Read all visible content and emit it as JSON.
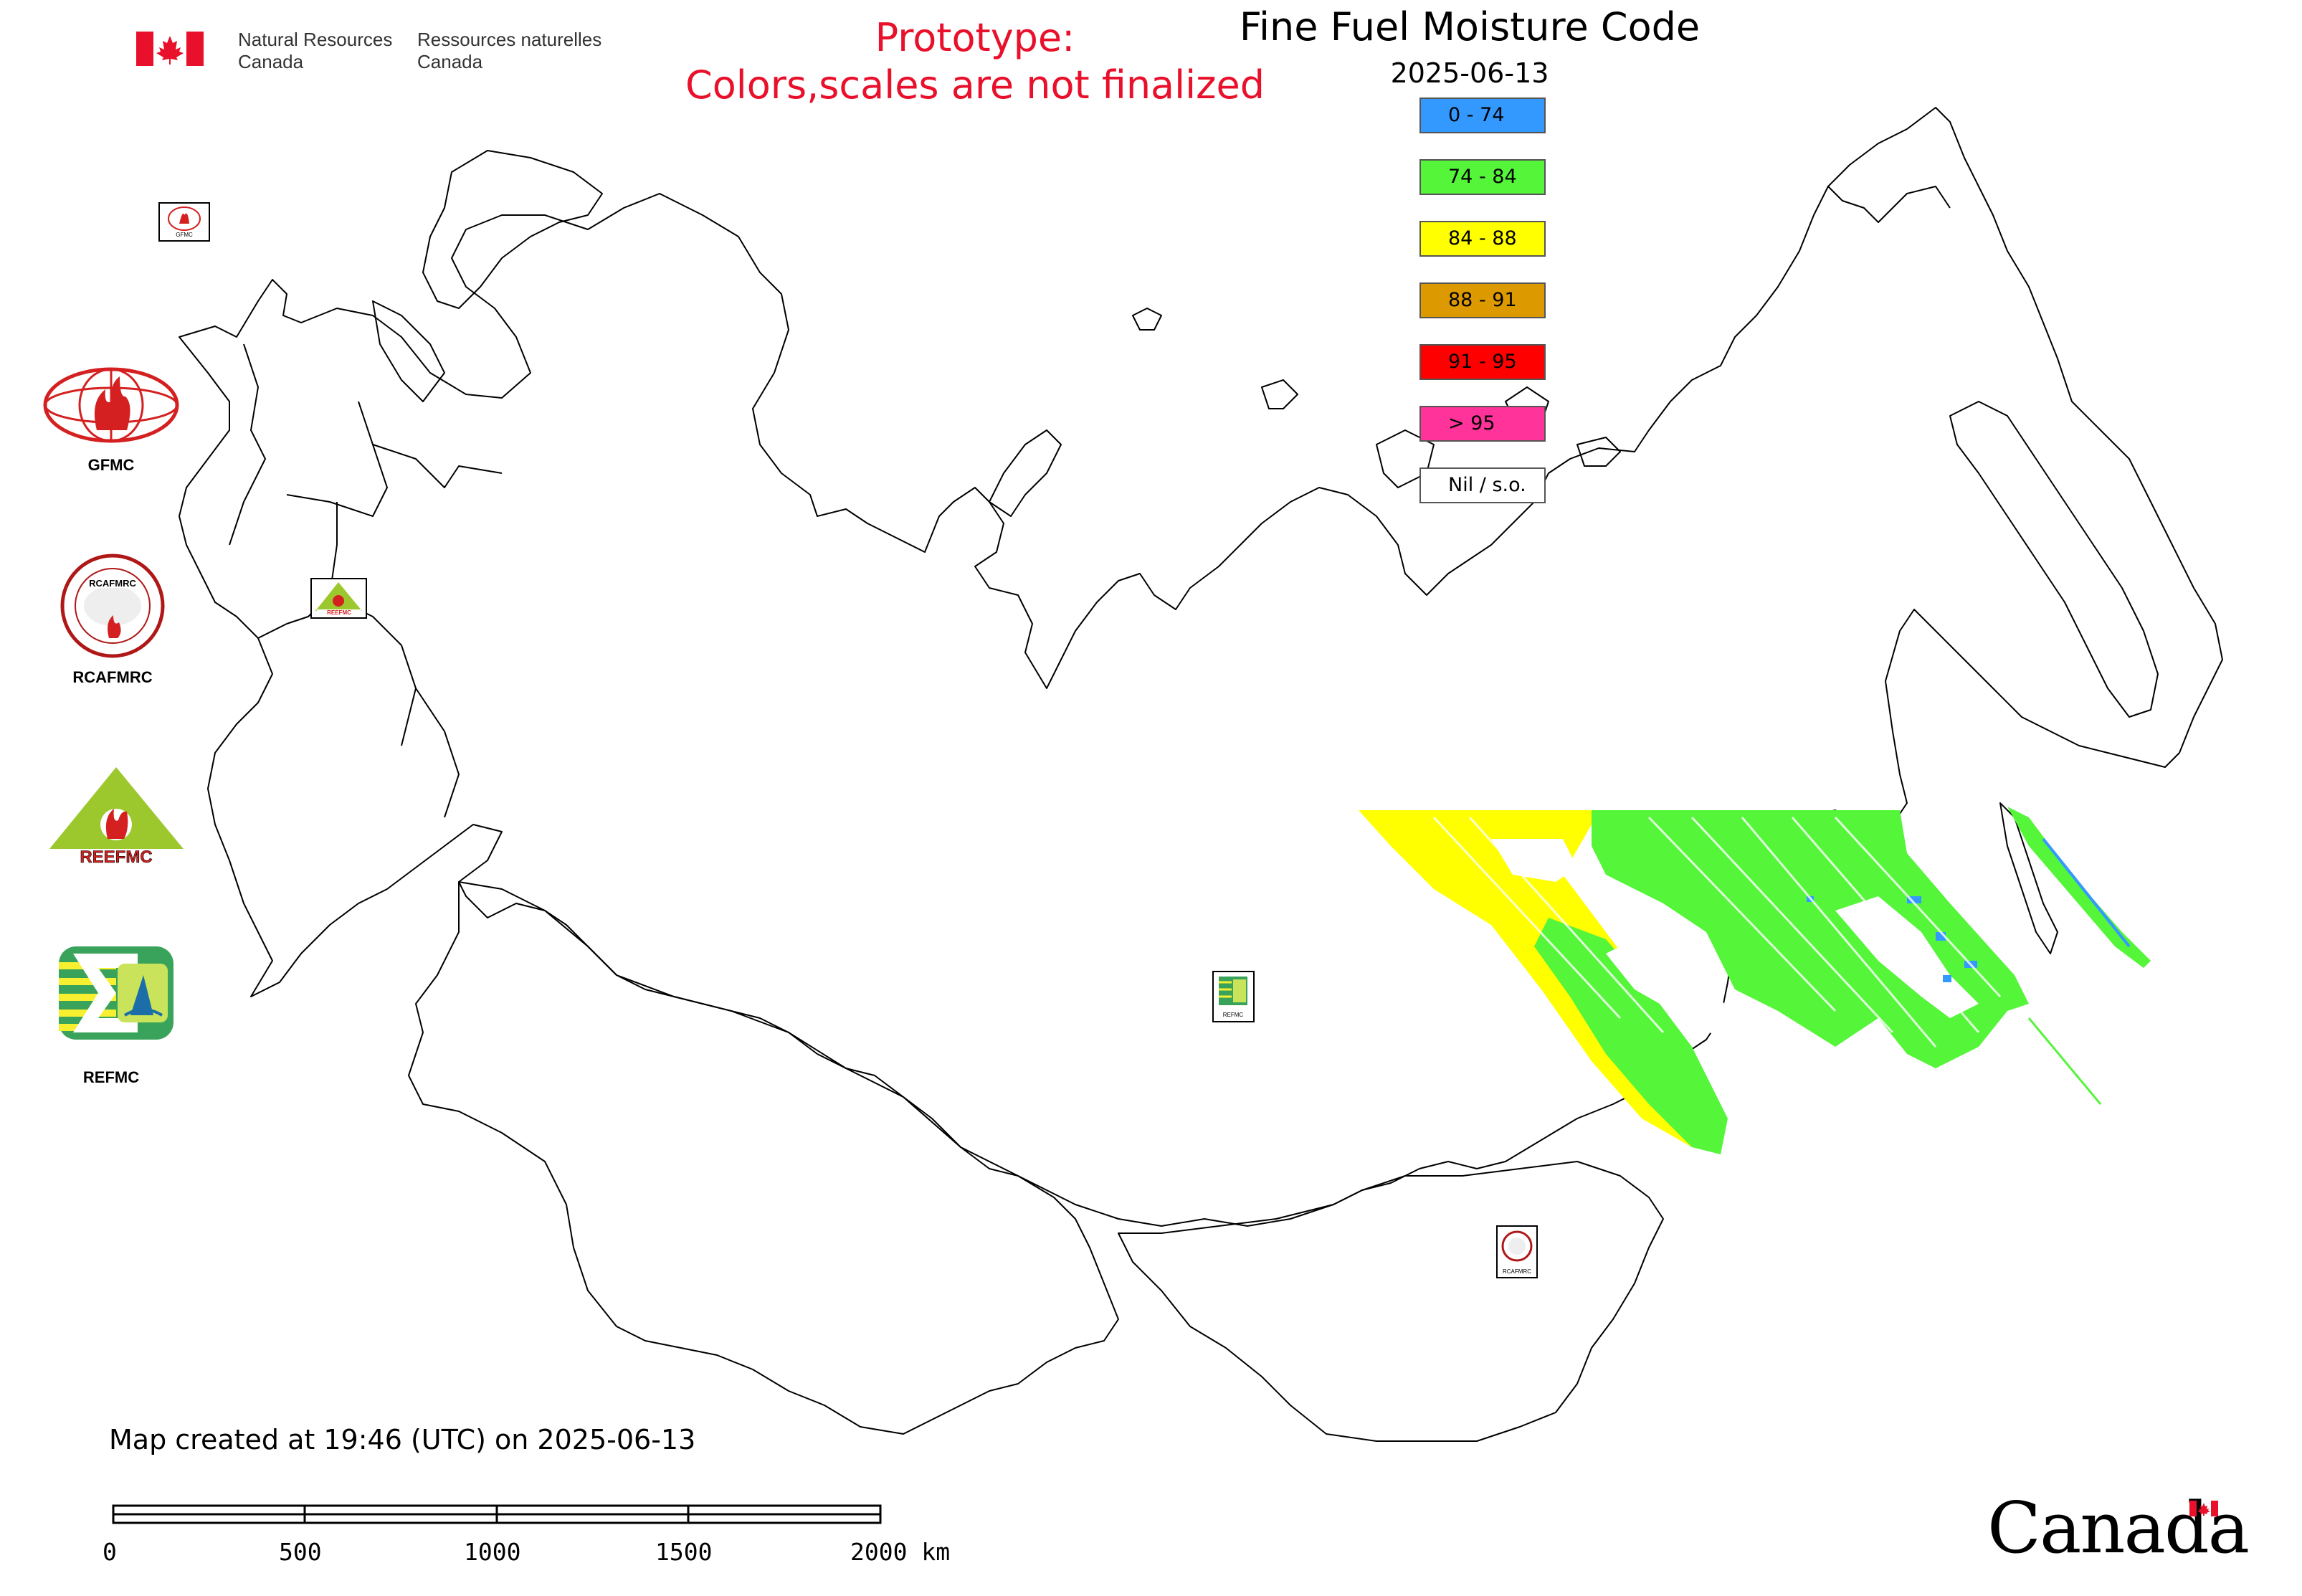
{
  "header": {
    "agency_en_1": "Natural Resources",
    "agency_en_2": "Canada",
    "agency_fr_1": "Ressources naturelles",
    "agency_fr_2": "Canada",
    "prototype_line1": "Prototype:",
    "prototype_line2": "Colors,scales are not finalized"
  },
  "map": {
    "title": "Fine Fuel Moisture Code",
    "date": "2025-06-13"
  },
  "legend": [
    {
      "label": "0 - 74",
      "color": "#3399ff"
    },
    {
      "label": "74 - 84",
      "color": "#55f53a"
    },
    {
      "label": "84 - 88",
      "color": "#ffff00"
    },
    {
      "label": "88 - 91",
      "color": "#dd9a00"
    },
    {
      "label": "91 - 95",
      "color": "#ff0000"
    },
    {
      "label": "> 95",
      "color": "#ff3399"
    },
    {
      "label": "Nil / s.o.",
      "color": "#ffffff"
    }
  ],
  "logos": {
    "gfmc": "GFMC",
    "rcafmrc": "RCAFMRC",
    "reefmc": "REEFMC",
    "refmc": "REFMC"
  },
  "footer": {
    "created": "Map created at 19:46 (UTC) on 2025-06-13",
    "scale_ticks": [
      "0",
      "500",
      "1000",
      "1500",
      "2000 km"
    ],
    "wordmark": "Canada"
  }
}
